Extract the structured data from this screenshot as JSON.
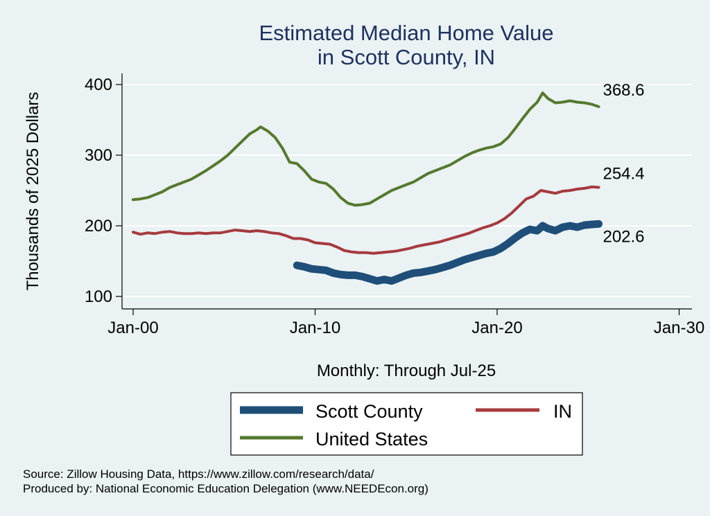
{
  "chart_data": {
    "type": "line",
    "title": [
      "Estimated Median Home Value",
      "in Scott County, IN"
    ],
    "ylabel": "Thousands of 2025 Dollars",
    "xlabel": "Monthly: Through Jul-25",
    "ylim": [
      90,
      420
    ],
    "yticks": [
      100,
      200,
      300,
      400
    ],
    "xlim": [
      0,
      30.3
    ],
    "xticks": [
      {
        "value": 0,
        "label": "Jan-00"
      },
      {
        "value": 10,
        "label": "Jan-10"
      },
      {
        "value": 20,
        "label": "Jan-20"
      },
      {
        "value": 30,
        "label": "Jan-30"
      }
    ],
    "grid": true,
    "legend_position": "bottom",
    "series": [
      {
        "name": "Scott County",
        "color": "#1f4e79",
        "width": 11,
        "end_label": "202.6",
        "points": [
          [
            9.0,
            144
          ],
          [
            9.4,
            142
          ],
          [
            9.8,
            139
          ],
          [
            10.2,
            138
          ],
          [
            10.6,
            137
          ],
          [
            11.0,
            133
          ],
          [
            11.4,
            131
          ],
          [
            11.8,
            130
          ],
          [
            12.2,
            130
          ],
          [
            12.6,
            128
          ],
          [
            13.0,
            125
          ],
          [
            13.4,
            122
          ],
          [
            13.8,
            124
          ],
          [
            14.2,
            122
          ],
          [
            14.6,
            126
          ],
          [
            15.0,
            130
          ],
          [
            15.4,
            133
          ],
          [
            15.8,
            134
          ],
          [
            16.2,
            136
          ],
          [
            16.6,
            138
          ],
          [
            17.0,
            141
          ],
          [
            17.4,
            144
          ],
          [
            17.8,
            148
          ],
          [
            18.2,
            152
          ],
          [
            18.6,
            155
          ],
          [
            19.0,
            158
          ],
          [
            19.4,
            161
          ],
          [
            19.8,
            163
          ],
          [
            20.2,
            168
          ],
          [
            20.6,
            175
          ],
          [
            21.0,
            183
          ],
          [
            21.4,
            190
          ],
          [
            21.8,
            195
          ],
          [
            22.2,
            193
          ],
          [
            22.5,
            200
          ],
          [
            22.8,
            196
          ],
          [
            23.2,
            193
          ],
          [
            23.6,
            198
          ],
          [
            24.0,
            200
          ],
          [
            24.4,
            198
          ],
          [
            24.8,
            201
          ],
          [
            25.2,
            202
          ],
          [
            25.58,
            202.6
          ]
        ]
      },
      {
        "name": "IN",
        "color": "#a63a3e",
        "width": 4,
        "end_label": "254.4",
        "points": [
          [
            0,
            191
          ],
          [
            0.4,
            188
          ],
          [
            0.8,
            190
          ],
          [
            1.2,
            189
          ],
          [
            1.6,
            191
          ],
          [
            2.0,
            192
          ],
          [
            2.4,
            190
          ],
          [
            2.8,
            189
          ],
          [
            3.2,
            189
          ],
          [
            3.6,
            190
          ],
          [
            4.0,
            189
          ],
          [
            4.4,
            190
          ],
          [
            4.8,
            190
          ],
          [
            5.2,
            192
          ],
          [
            5.6,
            194
          ],
          [
            6.0,
            193
          ],
          [
            6.4,
            192
          ],
          [
            6.8,
            193
          ],
          [
            7.2,
            192
          ],
          [
            7.6,
            190
          ],
          [
            8.0,
            189
          ],
          [
            8.4,
            186
          ],
          [
            8.8,
            182
          ],
          [
            9.2,
            182
          ],
          [
            9.6,
            180
          ],
          [
            10.0,
            176
          ],
          [
            10.4,
            175
          ],
          [
            10.8,
            174
          ],
          [
            11.2,
            170
          ],
          [
            11.6,
            165
          ],
          [
            12.0,
            163
          ],
          [
            12.4,
            162
          ],
          [
            12.8,
            162
          ],
          [
            13.2,
            161
          ],
          [
            13.6,
            162
          ],
          [
            14.0,
            163
          ],
          [
            14.4,
            164
          ],
          [
            14.8,
            166
          ],
          [
            15.2,
            168
          ],
          [
            15.6,
            171
          ],
          [
            16.0,
            173
          ],
          [
            16.4,
            175
          ],
          [
            16.8,
            177
          ],
          [
            17.2,
            180
          ],
          [
            17.6,
            183
          ],
          [
            18.0,
            186
          ],
          [
            18.4,
            189
          ],
          [
            18.8,
            193
          ],
          [
            19.2,
            197
          ],
          [
            19.6,
            200
          ],
          [
            20.0,
            204
          ],
          [
            20.4,
            210
          ],
          [
            20.8,
            218
          ],
          [
            21.2,
            228
          ],
          [
            21.6,
            238
          ],
          [
            22.0,
            242
          ],
          [
            22.4,
            250
          ],
          [
            22.8,
            248
          ],
          [
            23.2,
            246
          ],
          [
            23.6,
            249
          ],
          [
            24.0,
            250
          ],
          [
            24.4,
            252
          ],
          [
            24.8,
            253
          ],
          [
            25.2,
            255
          ],
          [
            25.58,
            254.4
          ]
        ]
      },
      {
        "name": "United States",
        "color": "#56792e",
        "width": 4,
        "end_label": "368.6",
        "points": [
          [
            0,
            237
          ],
          [
            0.4,
            238
          ],
          [
            0.8,
            240
          ],
          [
            1.2,
            244
          ],
          [
            1.6,
            248
          ],
          [
            2.0,
            254
          ],
          [
            2.4,
            258
          ],
          [
            2.8,
            262
          ],
          [
            3.2,
            266
          ],
          [
            3.6,
            272
          ],
          [
            4.0,
            278
          ],
          [
            4.4,
            285
          ],
          [
            4.8,
            292
          ],
          [
            5.2,
            300
          ],
          [
            5.6,
            310
          ],
          [
            6.0,
            320
          ],
          [
            6.4,
            330
          ],
          [
            6.8,
            336
          ],
          [
            7.0,
            340
          ],
          [
            7.4,
            334
          ],
          [
            7.8,
            325
          ],
          [
            8.2,
            310
          ],
          [
            8.6,
            290
          ],
          [
            9.0,
            288
          ],
          [
            9.4,
            278
          ],
          [
            9.8,
            266
          ],
          [
            10.2,
            262
          ],
          [
            10.6,
            260
          ],
          [
            11.0,
            252
          ],
          [
            11.4,
            240
          ],
          [
            11.8,
            232
          ],
          [
            12.2,
            229
          ],
          [
            12.6,
            230
          ],
          [
            13.0,
            232
          ],
          [
            13.4,
            238
          ],
          [
            13.8,
            244
          ],
          [
            14.2,
            250
          ],
          [
            14.6,
            254
          ],
          [
            15.0,
            258
          ],
          [
            15.4,
            262
          ],
          [
            15.8,
            268
          ],
          [
            16.2,
            274
          ],
          [
            16.6,
            278
          ],
          [
            17.0,
            282
          ],
          [
            17.4,
            286
          ],
          [
            17.8,
            292
          ],
          [
            18.2,
            298
          ],
          [
            18.6,
            303
          ],
          [
            19.0,
            307
          ],
          [
            19.4,
            310
          ],
          [
            19.8,
            312
          ],
          [
            20.2,
            316
          ],
          [
            20.6,
            325
          ],
          [
            21.0,
            338
          ],
          [
            21.4,
            352
          ],
          [
            21.8,
            365
          ],
          [
            22.2,
            375
          ],
          [
            22.5,
            388
          ],
          [
            22.8,
            380
          ],
          [
            23.2,
            374
          ],
          [
            23.6,
            375
          ],
          [
            24.0,
            377
          ],
          [
            24.4,
            375
          ],
          [
            24.8,
            374
          ],
          [
            25.2,
            372
          ],
          [
            25.58,
            368.6
          ]
        ]
      }
    ]
  },
  "legend": {
    "items": [
      {
        "name": "Scott County",
        "color": "#1f4e79"
      },
      {
        "name": "IN",
        "color": "#a63a3e"
      },
      {
        "name": "United States",
        "color": "#56792e"
      }
    ]
  },
  "footer": {
    "source": "Source: Zillow Housing Data, https://www.zillow.com/research/data/",
    "produced": "Produced by: National Economic Education Delegation (www.NEEDEcon.org)"
  }
}
